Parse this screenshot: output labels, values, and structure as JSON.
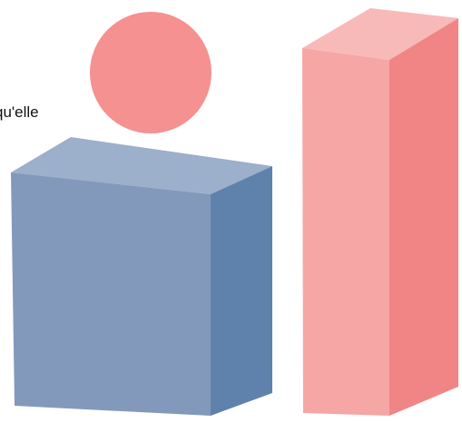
{
  "text": {
    "fragment": "qu'elle"
  },
  "colors": {
    "background": "#ffffff",
    "circle": "#f59190",
    "blue_box_front": "#8399bb",
    "blue_box_top": "#9cafcb",
    "blue_box_side": "#5f82ad",
    "pink_box_front": "#f6a6a4",
    "pink_box_top": "#f8bab8",
    "pink_box_side": "#f18585"
  },
  "shapes": {
    "circle": "pink-circle",
    "blue_box": "blue-cuboid",
    "pink_box": "pink-tall-cuboid"
  }
}
